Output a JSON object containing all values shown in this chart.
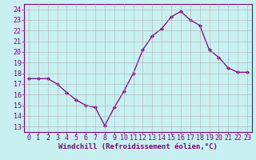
{
  "x": [
    0,
    1,
    2,
    3,
    4,
    5,
    6,
    7,
    8,
    9,
    10,
    11,
    12,
    13,
    14,
    15,
    16,
    17,
    18,
    19,
    20,
    21,
    22,
    23
  ],
  "y": [
    17.5,
    17.5,
    17.5,
    17.0,
    16.2,
    15.5,
    15.0,
    14.8,
    13.1,
    14.8,
    16.3,
    18.0,
    20.2,
    21.5,
    22.2,
    23.3,
    23.8,
    23.0,
    22.5,
    20.2,
    19.5,
    18.5,
    18.1,
    18.1
  ],
  "line_color": "#800080",
  "marker": "D",
  "marker_size": 2.2,
  "bg_color": "#c8f0f0",
  "grid_color": "#b0b0b0",
  "xlabel": "Windchill (Refroidissement éolien,°C)",
  "ylim": [
    12.5,
    24.5
  ],
  "xlim": [
    -0.5,
    23.5
  ],
  "yticks": [
    13,
    14,
    15,
    16,
    17,
    18,
    19,
    20,
    21,
    22,
    23,
    24
  ],
  "xticks": [
    0,
    1,
    2,
    3,
    4,
    5,
    6,
    7,
    8,
    9,
    10,
    11,
    12,
    13,
    14,
    15,
    16,
    17,
    18,
    19,
    20,
    21,
    22,
    23
  ],
  "axis_color": "#800080",
  "label_fontsize": 6.5,
  "tick_fontsize": 6.0
}
